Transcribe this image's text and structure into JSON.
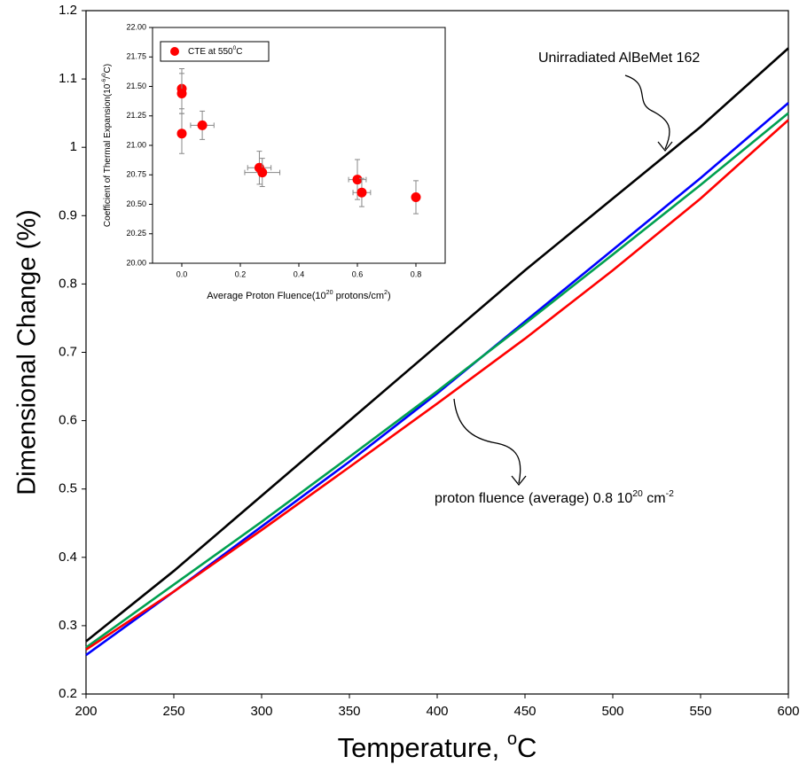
{
  "chart_data": [
    {
      "type": "line",
      "x": [
        200,
        250,
        300,
        350,
        400,
        450,
        500,
        550,
        600
      ],
      "series": [
        {
          "color": "#000000",
          "values": [
            0.277,
            0.38,
            0.49,
            0.6,
            0.71,
            0.82,
            0.925,
            1.03,
            1.145
          ]
        },
        {
          "color": "#0000ff",
          "values": [
            0.257,
            0.35,
            0.445,
            0.54,
            0.64,
            0.745,
            0.85,
            0.955,
            1.065
          ]
        },
        {
          "color": "#00a050",
          "values": [
            0.268,
            0.36,
            0.452,
            0.547,
            0.643,
            0.742,
            0.843,
            0.945,
            1.05
          ]
        },
        {
          "color": "#ff0000",
          "values": [
            0.265,
            0.35,
            0.44,
            0.532,
            0.625,
            0.72,
            0.82,
            0.925,
            1.04
          ]
        }
      ],
      "xlim": [
        200,
        600
      ],
      "xticks": [
        200,
        250,
        300,
        350,
        400,
        450,
        500,
        550,
        600
      ],
      "ylim": [
        0.2,
        1.2
      ],
      "yticks": [
        0.2,
        0.3,
        0.4,
        0.5,
        0.6,
        0.7,
        0.8,
        0.9,
        1,
        1.1,
        1.2
      ],
      "x_label": [
        "Temperature, ",
        "o",
        "C"
      ],
      "y_label": "Dimensional Change (%)",
      "annotations": [
        [
          "Unirradiated AlBeMet 162"
        ],
        [
          "proton fluence (average) 0.8 10",
          "20",
          " cm",
          "-2"
        ]
      ]
    },
    {
      "type": "scatter",
      "series": [
        {
          "name": [
            "CTE at 550",
            "0",
            "C"
          ],
          "color": "#ff0000",
          "x": [
            0.0,
            0.0,
            0.0,
            0.07,
            0.265,
            0.275,
            0.6,
            0.615,
            0.8
          ],
          "values": [
            21.48,
            21.44,
            21.1,
            21.17,
            20.81,
            20.77,
            20.71,
            20.6,
            20.56
          ],
          "yerr": [
            0.17,
            0.17,
            0.17,
            0.12,
            0.14,
            0.12,
            0.17,
            0.12,
            0.14
          ],
          "xerr": [
            null,
            null,
            null,
            0.04,
            0.04,
            0.06,
            0.03,
            0.03,
            null
          ]
        }
      ],
      "xlim": [
        -0.1,
        0.9
      ],
      "xticks": [
        {
          "value": 0,
          "label": "0.0"
        },
        {
          "value": 0.2,
          "label": "0.2"
        },
        {
          "value": 0.4,
          "label": "0.4"
        },
        {
          "value": 0.6,
          "label": "0.6"
        },
        {
          "value": 0.8,
          "label": "0.8"
        }
      ],
      "ylim": [
        20,
        22
      ],
      "yticks": [
        {
          "value": 20,
          "label": "20.00"
        },
        {
          "value": 20.25,
          "label": "20.25"
        },
        {
          "value": 20.5,
          "label": "20.50"
        },
        {
          "value": 20.75,
          "label": "20.75"
        },
        {
          "value": 21,
          "label": "21.00"
        },
        {
          "value": 21.25,
          "label": "21.25"
        },
        {
          "value": 21.5,
          "label": "21.50"
        },
        {
          "value": 21.75,
          "label": "21.75"
        },
        {
          "value": 22,
          "label": "22.00"
        }
      ],
      "x_label": [
        "Average Proton Fluence(10",
        "20",
        " protons/cm",
        "2",
        ")"
      ],
      "y_label": [
        "Coefficient of Thermal Expansion(10",
        "-6",
        "/",
        "0",
        "C)"
      ]
    }
  ]
}
